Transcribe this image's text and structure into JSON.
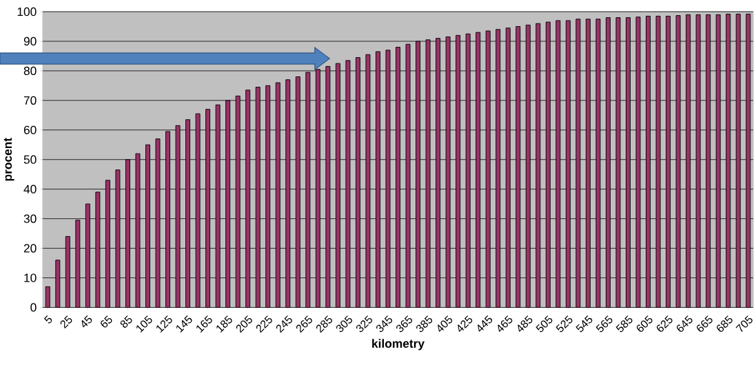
{
  "chart_data": {
    "type": "bar",
    "xlabel": "kilometry",
    "ylabel": "procent",
    "categories": [
      "5",
      null,
      "25",
      null,
      "45",
      null,
      "65",
      null,
      "85",
      null,
      "105",
      null,
      "125",
      null,
      "145",
      null,
      "165",
      null,
      "185",
      null,
      "205",
      null,
      "225",
      null,
      "245",
      null,
      "265",
      null,
      "285",
      null,
      "305",
      null,
      "325",
      null,
      "345",
      null,
      "365",
      null,
      "385",
      null,
      "405",
      null,
      "425",
      null,
      "445",
      null,
      "465",
      null,
      "485",
      null,
      "505",
      null,
      "525",
      null,
      "545",
      null,
      "565",
      null,
      "585",
      null,
      "605",
      null,
      "625",
      null,
      "645",
      null,
      "665",
      null,
      "685",
      null,
      "705"
    ],
    "values": [
      7,
      16,
      24,
      29.5,
      35,
      39,
      43,
      46.5,
      50,
      52,
      55,
      57,
      59.5,
      61.5,
      63.5,
      65.5,
      67,
      68.5,
      70,
      71.5,
      73.5,
      74.5,
      75,
      76,
      77,
      78,
      79.5,
      80.5,
      81.5,
      82.5,
      83.5,
      84.5,
      85.5,
      86.5,
      87,
      88,
      89,
      90,
      90.5,
      91,
      91.5,
      92,
      92.5,
      93,
      93.5,
      94,
      94.5,
      95,
      95.5,
      96,
      96.5,
      97,
      97,
      97.5,
      97.5,
      97.5,
      98,
      98,
      98,
      98.2,
      98.5,
      98.5,
      98.5,
      98.7,
      99,
      99,
      99,
      99,
      99.2,
      99.2,
      99.2
    ],
    "color": "#993366",
    "ylim": [
      0,
      100
    ],
    "yticks": [
      0,
      10,
      20,
      30,
      40,
      50,
      60,
      70,
      80,
      90,
      100
    ],
    "grid": "y"
  }
}
